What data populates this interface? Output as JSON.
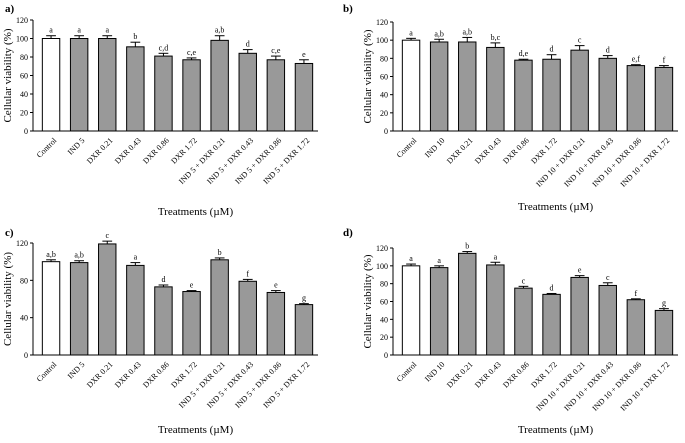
{
  "chart_data": [
    {
      "type": "bar",
      "panel": "a)",
      "ylabel": "Cellular viability (%)",
      "xlabel": "Treatments (µM)",
      "ylim": [
        0,
        120
      ],
      "yticks": [
        0,
        20,
        40,
        60,
        80,
        100,
        120
      ],
      "categories": [
        "Control",
        "IND 5",
        "DXR 0.21",
        "DXR 0.43",
        "DXR 0.86",
        "DXR 1.72",
        "IND 5 + DXR 0.21",
        "IND 5 + DXR 0.43",
        "IND 5 + DXR 0.86",
        "IND 5 + DXR 1.72"
      ],
      "values": [
        100,
        100,
        100,
        91,
        81,
        77,
        98,
        84,
        77,
        73
      ],
      "errors": [
        3,
        3,
        3,
        5,
        3,
        2,
        5,
        4,
        4,
        4
      ],
      "letters": [
        "a",
        "a",
        "a",
        "b",
        "c,d",
        "c,e",
        "a,b",
        "d",
        "c,e",
        "e"
      ],
      "colors": [
        "#ffffff",
        "#999999",
        "#999999",
        "#999999",
        "#999999",
        "#999999",
        "#999999",
        "#999999",
        "#999999",
        "#999999"
      ]
    },
    {
      "type": "bar",
      "panel": "b)",
      "ylabel": "Cellular viability (%)",
      "xlabel": "Treatments (µM)",
      "ylim": [
        0,
        120
      ],
      "yticks": [
        0,
        20,
        40,
        60,
        80,
        100,
        120
      ],
      "categories": [
        "Control",
        "IND 10",
        "DXR 0.21",
        "DXR 0.43",
        "DXR 0.86",
        "DXR 1.72",
        "IND 10 + DXR 0.21",
        "IND 10 + DXR 0.43",
        "IND 10 + DXR 0.86",
        "IND 10 + DXR 1.72"
      ],
      "values": [
        100,
        98,
        98,
        92,
        78,
        79,
        89,
        80,
        72,
        70
      ],
      "errors": [
        2,
        3,
        5,
        5,
        1,
        5,
        5,
        3,
        1,
        2
      ],
      "letters": [
        "a",
        "a,b",
        "a,b",
        "b,c",
        "d,e",
        "d",
        "c",
        "d",
        "e,f",
        "f"
      ],
      "colors": [
        "#ffffff",
        "#999999",
        "#999999",
        "#999999",
        "#999999",
        "#999999",
        "#999999",
        "#999999",
        "#999999",
        "#999999"
      ]
    },
    {
      "type": "bar",
      "panel": "c)",
      "ylabel": "Cellular viability (%)",
      "xlabel": "Treatments (µM)",
      "ylim": [
        0,
        120
      ],
      "yticks": [
        0,
        40,
        80,
        120
      ],
      "categories": [
        "Control",
        "IND 5",
        "DXR 0.21",
        "DXR 0.43",
        "DXR 0.86",
        "DXR 1.72",
        "IND 5 + DXR 0.21",
        "IND 5 + DXR 0.43",
        "IND 5 + DXR 0.86",
        "IND 5 + DXR 1.72"
      ],
      "values": [
        100,
        99,
        119,
        96,
        73,
        68,
        102,
        79,
        67,
        54
      ],
      "errors": [
        2,
        2,
        3,
        3,
        2,
        1,
        2,
        2,
        2,
        1
      ],
      "letters": [
        "a,b",
        "a,b",
        "c",
        "a",
        "d",
        "e",
        "b",
        "f",
        "e",
        "g"
      ],
      "colors": [
        "#ffffff",
        "#999999",
        "#999999",
        "#999999",
        "#999999",
        "#999999",
        "#999999",
        "#999999",
        "#999999",
        "#999999"
      ]
    },
    {
      "type": "bar",
      "panel": "d)",
      "ylabel": "Cellular viability (%)",
      "xlabel": "Treatments (µM)",
      "ylim": [
        0,
        120
      ],
      "yticks": [
        0,
        20,
        40,
        60,
        80,
        100,
        120
      ],
      "categories": [
        "Control",
        "IND 10",
        "DXR 0.21",
        "DXR 0.43",
        "DXR 0.86",
        "DXR 1.72",
        "IND 10 + DXR 0.21",
        "IND 10 + DXR 0.43",
        "IND 10 + DXR 0.86",
        "IND 10 + DXR 1.72"
      ],
      "values": [
        100,
        98,
        114,
        101,
        75,
        68,
        87,
        78,
        62,
        50
      ],
      "errors": [
        2,
        2,
        2,
        3,
        2,
        1,
        2,
        3,
        1,
        2
      ],
      "letters": [
        "a",
        "a",
        "b",
        "a",
        "c",
        "d",
        "e",
        "c",
        "f",
        "g"
      ],
      "colors": [
        "#ffffff",
        "#999999",
        "#999999",
        "#999999",
        "#999999",
        "#999999",
        "#999999",
        "#999999",
        "#999999",
        "#999999"
      ]
    }
  ]
}
